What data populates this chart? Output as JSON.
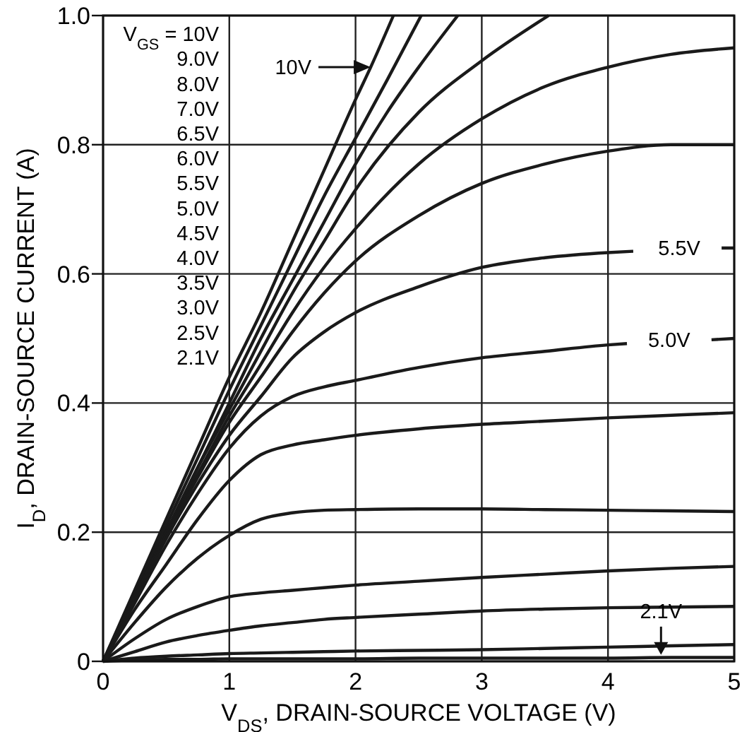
{
  "chart_data": {
    "type": "line",
    "xlabel": "V$_{DS}$, DRAIN-SOURCE VOLTAGE (V)",
    "ylabel": "I$_{D}$, DRAIN-SOURCE CURRENT (A)",
    "x": [
      0,
      0.25,
      0.5,
      0.75,
      1,
      1.25,
      1.5,
      1.75,
      2,
      2.5,
      3,
      3.5,
      4,
      4.5,
      5
    ],
    "xlim": [
      0,
      5
    ],
    "xticks": [
      0,
      1,
      2,
      3,
      4,
      5
    ],
    "ylim": [
      0,
      1
    ],
    "yticks": [
      0,
      {
        "value": 0.2,
        "label": "0.2"
      },
      {
        "value": 0.4,
        "label": "0.4"
      },
      {
        "value": 0.6,
        "label": "0.6"
      },
      {
        "value": 0.8,
        "label": "0.8"
      },
      {
        "value": 1,
        "label": "1.0"
      }
    ],
    "grid": true,
    "series": [
      {
        "color": "#1a1a1a",
        "x": [
          0,
          0.25,
          0.5,
          0.75,
          1,
          1.25,
          1.5,
          1.75,
          2,
          2.12,
          2.3
        ],
        "values": [
          0,
          0.11,
          0.22,
          0.33,
          0.44,
          0.54,
          0.65,
          0.76,
          0.87,
          0.92,
          1.0
        ]
      },
      {
        "color": "#1a1a1a",
        "x": [
          0,
          0.25,
          0.5,
          0.75,
          1,
          1.25,
          1.5,
          1.75,
          2,
          2.25,
          2.52
        ],
        "values": [
          0,
          0.105,
          0.21,
          0.315,
          0.42,
          0.52,
          0.62,
          0.72,
          0.81,
          0.9,
          1.0
        ]
      },
      {
        "color": "#1a1a1a",
        "x": [
          0,
          0.25,
          0.5,
          0.75,
          1,
          1.25,
          1.5,
          1.75,
          2,
          2.25,
          2.5,
          2.81
        ],
        "values": [
          0,
          0.1,
          0.2,
          0.3,
          0.4,
          0.5,
          0.59,
          0.68,
          0.77,
          0.85,
          0.92,
          1.0
        ]
      },
      {
        "color": "#1a1a1a",
        "x": [
          0,
          0.25,
          0.5,
          0.75,
          1,
          1.25,
          1.5,
          1.75,
          2,
          2.5,
          3,
          3.53
        ],
        "values": [
          0,
          0.1,
          0.2,
          0.3,
          0.39,
          0.48,
          0.57,
          0.65,
          0.73,
          0.85,
          0.93,
          1.0
        ]
      },
      {
        "color": "#1a1a1a",
        "values": [
          0,
          0.1,
          0.2,
          0.29,
          0.38,
          0.46,
          0.54,
          0.61,
          0.67,
          0.77,
          0.84,
          0.89,
          0.92,
          0.94,
          0.95
        ]
      },
      {
        "color": "#1a1a1a",
        "values": [
          0,
          0.1,
          0.195,
          0.285,
          0.37,
          0.44,
          0.51,
          0.57,
          0.62,
          0.69,
          0.74,
          0.77,
          0.79,
          0.8,
          0.8
        ]
      },
      {
        "color": "#1a1a1a",
        "x": [
          0,
          0.25,
          0.5,
          0.75,
          1,
          1.25,
          1.5,
          1.75,
          2,
          2.5,
          3,
          3.5,
          4,
          4.2,
          4.55,
          4.9,
          5
        ],
        "values": [
          0,
          0.095,
          0.19,
          0.275,
          0.35,
          0.41,
          0.47,
          0.51,
          0.54,
          0.58,
          0.61,
          0.625,
          0.633,
          0.635,
          null,
          0.64,
          0.64
        ]
      },
      {
        "color": "#1a1a1a",
        "x": [
          0,
          0.25,
          0.5,
          0.75,
          1,
          1.25,
          1.5,
          1.75,
          2,
          2.5,
          3,
          3.5,
          4,
          4.15,
          4.48,
          4.82,
          5
        ],
        "values": [
          0,
          0.09,
          0.18,
          0.26,
          0.33,
          0.38,
          0.41,
          0.425,
          0.435,
          0.455,
          0.47,
          0.48,
          0.49,
          0.492,
          null,
          0.498,
          0.5
        ]
      },
      {
        "color": "#1a1a1a",
        "values": [
          0,
          0.08,
          0.15,
          0.22,
          0.28,
          0.32,
          0.335,
          0.343,
          0.35,
          0.36,
          0.367,
          0.372,
          0.377,
          0.381,
          0.385
        ]
      },
      {
        "color": "#1a1a1a",
        "values": [
          0,
          0.06,
          0.115,
          0.16,
          0.195,
          0.22,
          0.23,
          0.234,
          0.235,
          0.236,
          0.236,
          0.235,
          0.234,
          0.233,
          0.232
        ]
      },
      {
        "color": "#1a1a1a",
        "values": [
          0,
          0.035,
          0.065,
          0.085,
          0.1,
          0.106,
          0.11,
          0.114,
          0.118,
          0.124,
          0.13,
          0.135,
          0.14,
          0.144,
          0.147
        ]
      },
      {
        "color": "#1a1a1a",
        "values": [
          0,
          0.015,
          0.03,
          0.04,
          0.048,
          0.055,
          0.06,
          0.065,
          0.068,
          0.073,
          0.078,
          0.081,
          0.083,
          0.084,
          0.085
        ]
      },
      {
        "color": "#1a1a1a",
        "values": [
          0,
          0.005,
          0.008,
          0.01,
          0.012,
          0.013,
          0.014,
          0.015,
          0.016,
          0.017,
          0.018,
          0.02,
          0.022,
          0.024,
          0.026
        ]
      },
      {
        "color": "#1a1a1a",
        "values": [
          0,
          0.002,
          0.003,
          0.003,
          0.004,
          0.004,
          0.004,
          0.004,
          0.004,
          0.005,
          0.005,
          0.005,
          0.005,
          0.006,
          0.006
        ]
      }
    ],
    "annotations": [
      "V$_{GS}$ = 10V",
      "9.0V",
      "8.0V",
      "7.0V",
      "6.5V",
      "6.0V",
      "5.5V",
      "5.0V",
      "4.5V",
      "4.0V",
      "3.5V",
      "3.0V",
      "2.5V",
      "2.1V",
      {
        "text": "10V",
        "x": 2.12,
        "y": 0.92
      },
      {
        "text": "5.5V",
        "x": 4.9,
        "y": 0.64
      },
      {
        "text": "5.0V",
        "x": 4.82,
        "y": 0.498
      },
      {
        "text": "2.1V",
        "x": 4.42,
        "y": 0.01
      }
    ]
  }
}
